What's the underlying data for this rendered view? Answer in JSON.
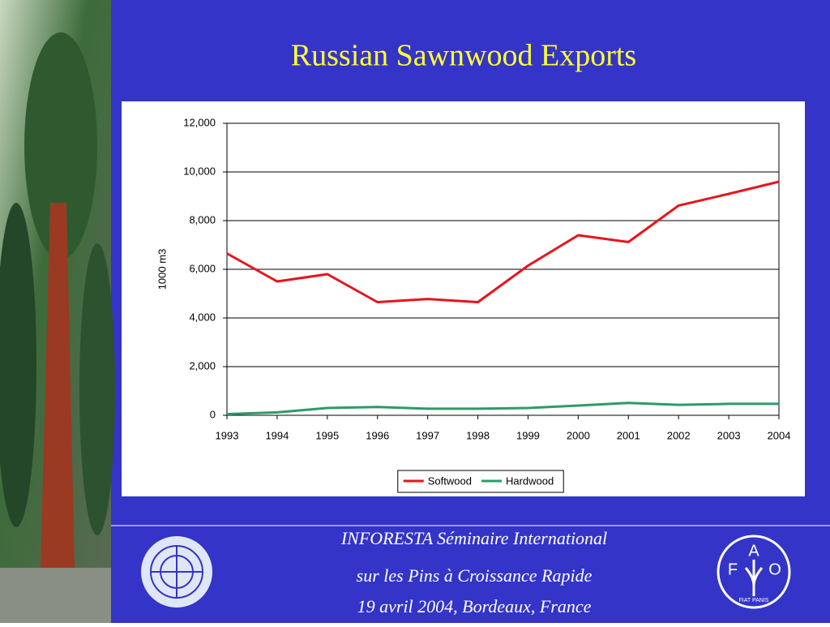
{
  "title": "Russian Sawnwood Exports",
  "chart_data": {
    "type": "line",
    "x": [
      1993,
      1994,
      1995,
      1996,
      1997,
      1998,
      1999,
      2000,
      2001,
      2002,
      2003,
      2004
    ],
    "xlim": [
      1993,
      2004
    ],
    "xticks": [
      1993,
      1994,
      1995,
      1996,
      1997,
      1998,
      1999,
      2000,
      2001,
      2002,
      2003,
      2004
    ],
    "ylim": [
      0,
      12000
    ],
    "yticks": [
      0,
      {
        "value": 2000,
        "label": "2,000"
      },
      {
        "value": 4000,
        "label": "4,000"
      },
      {
        "value": 6000,
        "label": "6,000"
      },
      {
        "value": 8000,
        "label": "8,000"
      },
      {
        "value": 10000,
        "label": "10,000"
      },
      {
        "value": 12000,
        "label": "12,000"
      }
    ],
    "y_label": "1000 m3",
    "grid": true,
    "legend": "bottom",
    "series": [
      {
        "name": "Softwood",
        "color": "#e8141c",
        "values": [
          6650,
          5500,
          5800,
          4650,
          4780,
          4650,
          6150,
          7400,
          7120,
          8620,
          9100,
          9600
        ]
      },
      {
        "name": "Hardwood",
        "color": "#2e9a6a",
        "values": [
          50,
          120,
          300,
          340,
          270,
          270,
          300,
          400,
          510,
          430,
          470,
          470
        ]
      }
    ]
  },
  "footer": {
    "lines": [
      "INFORESTA Séminaire International",
      "sur les Pins à Croissance Rapide",
      "19 avril 2004, Bordeaux, France"
    ]
  },
  "fao_logo": {
    "letters": [
      "F",
      "A",
      "O"
    ],
    "motto": "FIAT PANIS"
  }
}
